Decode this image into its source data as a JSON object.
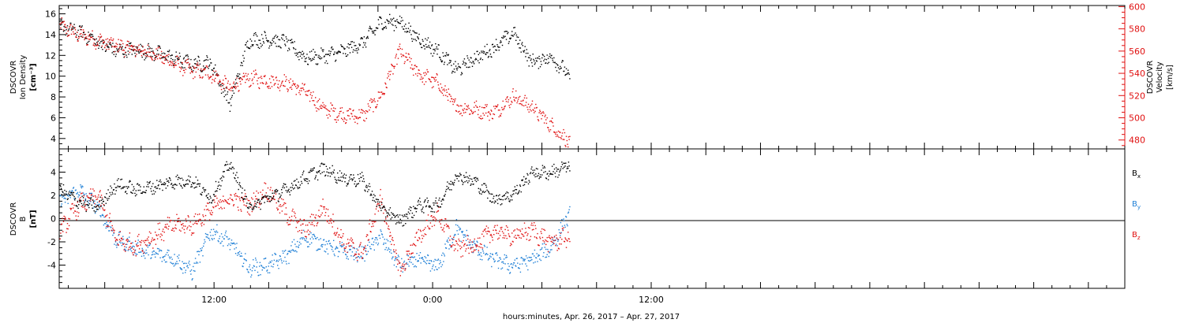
{
  "chart_data": [
    {
      "type": "scatter",
      "panel": "top",
      "ylabel_left": [
        "DSCOVR",
        "Ion Density",
        "[cm⁻³]"
      ],
      "ylabel_right": [
        "DSCOVR",
        "Velocity",
        "[km/s]"
      ],
      "ylim_left": [
        3,
        16.8
      ],
      "ylim_right": [
        472,
        601
      ],
      "yticks_left": [
        "4",
        "6",
        "8",
        "10",
        "12",
        "14",
        "16"
      ],
      "yticks_right": [
        "480",
        "500",
        "520",
        "540",
        "560",
        "580",
        "600"
      ],
      "series": [
        {
          "name": "Ion Density",
          "axis": "left",
          "color": "#000000",
          "x_hours": [
            0,
            1,
            2,
            3,
            4,
            5,
            6,
            7,
            8,
            9,
            10,
            11,
            12,
            13,
            14,
            15,
            16,
            17,
            18,
            19,
            20,
            21,
            22,
            23,
            24,
            25,
            26,
            27
          ],
          "values": [
            14.8,
            14.3,
            13.3,
            12.5,
            12.6,
            12.3,
            11.8,
            11.2,
            11.3,
            7.4,
            13.5,
            13.6,
            13.3,
            11.8,
            12.0,
            12.4,
            13.2,
            15.2,
            15.3,
            13.6,
            12.5,
            10.6,
            11.8,
            12.8,
            14.2,
            11.4,
            11.9,
            10.1
          ]
        },
        {
          "name": "Velocity",
          "axis": "right",
          "color": "#e01010",
          "x_hours": [
            0,
            1,
            2,
            3,
            4,
            5,
            6,
            7,
            8,
            9,
            10,
            11,
            12,
            13,
            14,
            15,
            16,
            17,
            18,
            19,
            20,
            21,
            22,
            23,
            24,
            25,
            26,
            27
          ],
          "values": [
            583,
            575,
            570,
            565,
            562,
            558,
            550,
            543,
            540,
            527,
            536,
            534,
            532,
            524,
            508,
            503,
            502,
            520,
            560,
            540,
            532,
            510,
            508,
            505,
            520,
            510,
            494,
            478
          ]
        }
      ]
    },
    {
      "type": "scatter",
      "panel": "bottom",
      "ylabel": [
        "DSCOVR",
        "B",
        "[nT]"
      ],
      "ylim": [
        -6,
        6
      ],
      "yticks": [
        "-4",
        "-2",
        "0",
        "2",
        "4"
      ],
      "legend": [
        {
          "label": "B",
          "sub": "x",
          "color": "#000000"
        },
        {
          "label": "B",
          "sub": "y",
          "color": "#1e7fd6"
        },
        {
          "label": "B",
          "sub": "z",
          "color": "#e01010"
        }
      ],
      "series": [
        {
          "name": "Bx",
          "color": "#000000",
          "x_hours": [
            0,
            1,
            2,
            3,
            4,
            5,
            6,
            7,
            8,
            9,
            10,
            11,
            12,
            13,
            14,
            15,
            16,
            17,
            18,
            19,
            20,
            21,
            22,
            23,
            24,
            25,
            26,
            27
          ],
          "values": [
            2.5,
            1.5,
            1.0,
            3.0,
            2.5,
            2.8,
            3.2,
            3.3,
            1.8,
            4.8,
            1.0,
            1.8,
            2.5,
            3.6,
            4.3,
            3.5,
            3.4,
            1.0,
            -0.2,
            1.2,
            1.2,
            3.8,
            3.2,
            1.7,
            2.1,
            4.0,
            4.0,
            4.6
          ]
        },
        {
          "name": "By",
          "color": "#1e7fd6",
          "x_hours": [
            0,
            1,
            2,
            3,
            4,
            5,
            6,
            7,
            8,
            9,
            10,
            11,
            12,
            13,
            14,
            15,
            16,
            17,
            18,
            19,
            20,
            21,
            22,
            23,
            24,
            25,
            26,
            27
          ],
          "values": [
            1.5,
            2.5,
            1.0,
            -1.8,
            -2.5,
            -3.0,
            -3.3,
            -4.5,
            -1.0,
            -2.0,
            -4.2,
            -4.0,
            -3.2,
            -1.5,
            -2.2,
            -2.8,
            -3.0,
            -1.5,
            -4.0,
            -3.5,
            -4.1,
            -0.8,
            -2.5,
            -3.5,
            -4.0,
            -3.5,
            -2.5,
            0.5
          ]
        },
        {
          "name": "Bz",
          "color": "#e01010",
          "x_hours": [
            0,
            1,
            2,
            3,
            4,
            5,
            6,
            7,
            8,
            9,
            10,
            11,
            12,
            13,
            14,
            15,
            16,
            17,
            18,
            19,
            20,
            21,
            22,
            23,
            24,
            25,
            26,
            27
          ],
          "values": [
            -1.0,
            1.2,
            2.0,
            -1.8,
            -2.3,
            -1.5,
            -0.5,
            -0.5,
            0.8,
            1.8,
            1.2,
            2.5,
            0.5,
            -1.0,
            1.0,
            -2.0,
            -3.0,
            1.8,
            -4.5,
            -1.5,
            0.5,
            -2.5,
            -2.2,
            -1.0,
            -1.5,
            -1.0,
            -2.0,
            -1.5
          ]
        }
      ]
    }
  ],
  "x_axis": {
    "label": "hours:minutes, Apr. 26, 2017 – Apr. 27, 2017",
    "start_hour": 3.5,
    "end_hour": 62.0,
    "data_end_hour": 31.5,
    "tick_labels": [
      {
        "hour": 12,
        "label": "12:00"
      },
      {
        "hour": 24,
        "label": "0:00"
      },
      {
        "hour": 36,
        "label": "12:00"
      }
    ]
  }
}
